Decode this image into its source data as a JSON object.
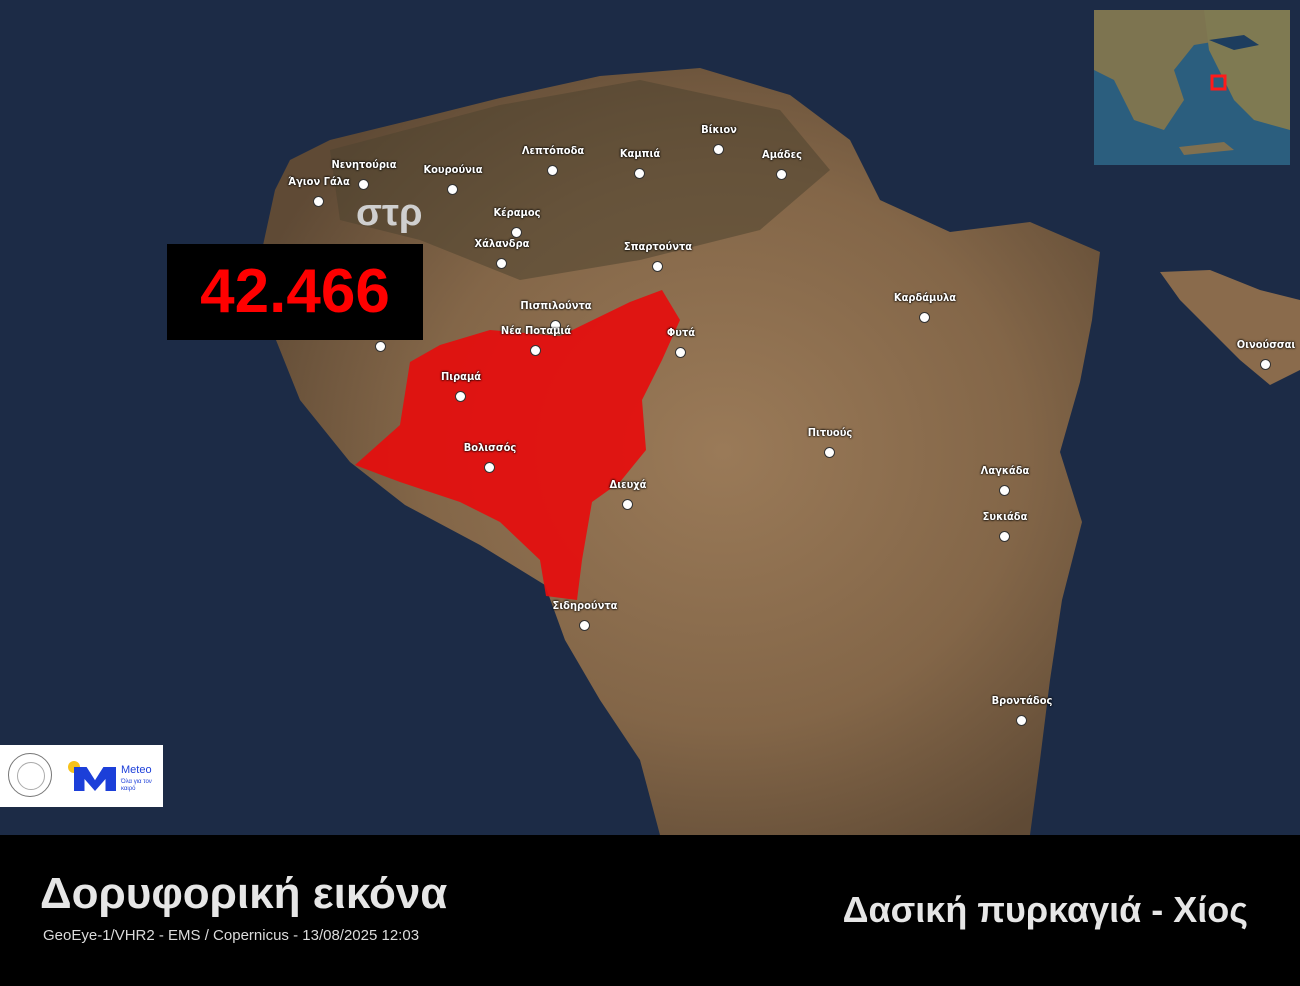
{
  "map": {
    "burned_area": {
      "value": "42.466",
      "unit": "στρ",
      "color": "#ff0000"
    },
    "towns": [
      {
        "name": "Άγιον Γάλα"
      },
      {
        "name": "Νενητούρια"
      },
      {
        "name": "Κουρούνια"
      },
      {
        "name": "Λεπτόποδα"
      },
      {
        "name": "Καμπιά"
      },
      {
        "name": "Βίκιον"
      },
      {
        "name": "Αμάδες"
      },
      {
        "name": "Κέραμος"
      },
      {
        "name": "Χάλανδρα"
      },
      {
        "name": "Σπαρτούντα"
      },
      {
        "name": "Πισπιλούντα"
      },
      {
        "name": "Νέα Ποταμιά"
      },
      {
        "name": "Φυτά"
      },
      {
        "name": "Πιραμά"
      },
      {
        "name": "Βολισσός"
      },
      {
        "name": "Διευχά"
      },
      {
        "name": "Σιδηρούντα"
      },
      {
        "name": "Καρδάμυλα"
      },
      {
        "name": "Πιτυούς"
      },
      {
        "name": "Λαγκάδα"
      },
      {
        "name": "Συκιάδα"
      },
      {
        "name": "Βροντάδος"
      },
      {
        "name": "Οινούσσαι"
      },
      {
        "name": ""
      }
    ],
    "inset": {
      "highlight_color": "#ff1a1a"
    }
  },
  "logos": {
    "meteo_name": "Meteo",
    "meteo_tagline": "Όλα για τον καιρό"
  },
  "footer": {
    "title": "Δορυφορική εικόνα",
    "source": "GeoEye-1/VHR2 - EMS / Copernicus - 13/08/2025 12:03",
    "event": "Δασική πυρκαγιά - Χίος"
  }
}
